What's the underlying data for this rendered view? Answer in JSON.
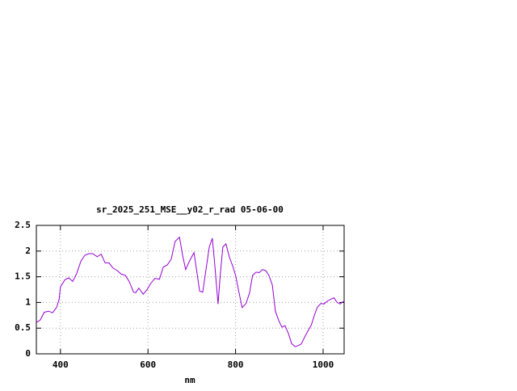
{
  "chart_data": {
    "type": "line",
    "title": "sr_2025_251_MSE__y02_r_rad 05-06-00",
    "x_label": "nm",
    "x": [
      345,
      354,
      363,
      373,
      382,
      391,
      397,
      400,
      410,
      419,
      428,
      437,
      447,
      456,
      465,
      474,
      484,
      493,
      502,
      511,
      520,
      530,
      539,
      548,
      557,
      567,
      572,
      579,
      589,
      598,
      607,
      616,
      626,
      635,
      644,
      653,
      662,
      672,
      679,
      686,
      695,
      705,
      710,
      718,
      725,
      732,
      740,
      747,
      753,
      760,
      765,
      771,
      778,
      786,
      793,
      800,
      808,
      815,
      824,
      832,
      839,
      847,
      854,
      861,
      869,
      876,
      884,
      891,
      899,
      906,
      913,
      921,
      928,
      936,
      943,
      950,
      958,
      965,
      973,
      980,
      987,
      995,
      1002,
      1010,
      1017,
      1025,
      1032,
      1039,
      1048
    ],
    "values": [
      0.61,
      0.66,
      0.81,
      0.83,
      0.8,
      0.9,
      1.06,
      1.3,
      1.44,
      1.48,
      1.41,
      1.56,
      1.81,
      1.92,
      1.95,
      1.95,
      1.89,
      1.94,
      1.77,
      1.77,
      1.67,
      1.62,
      1.55,
      1.53,
      1.41,
      1.2,
      1.19,
      1.28,
      1.16,
      1.25,
      1.38,
      1.47,
      1.45,
      1.69,
      1.73,
      1.84,
      2.19,
      2.27,
      1.92,
      1.64,
      1.81,
      1.97,
      1.69,
      1.22,
      1.2,
      1.61,
      2.08,
      2.25,
      1.69,
      0.97,
      1.53,
      2.08,
      2.14,
      1.88,
      1.72,
      1.53,
      1.19,
      0.9,
      0.98,
      1.19,
      1.53,
      1.59,
      1.58,
      1.64,
      1.62,
      1.53,
      1.34,
      0.83,
      0.64,
      0.52,
      0.55,
      0.39,
      0.2,
      0.14,
      0.16,
      0.19,
      0.33,
      0.44,
      0.56,
      0.75,
      0.91,
      0.98,
      0.97,
      1.03,
      1.06,
      1.09,
      1.0,
      0.97,
      1.03
    ],
    "color": "#9400d3",
    "xlim": [
      345,
      1048
    ],
    "xticks": [
      400,
      600,
      800,
      1000
    ],
    "ylim": [
      0,
      2.5
    ],
    "yticks": [
      0,
      0.5,
      1,
      1.5,
      2,
      2.5
    ],
    "grid": true
  }
}
